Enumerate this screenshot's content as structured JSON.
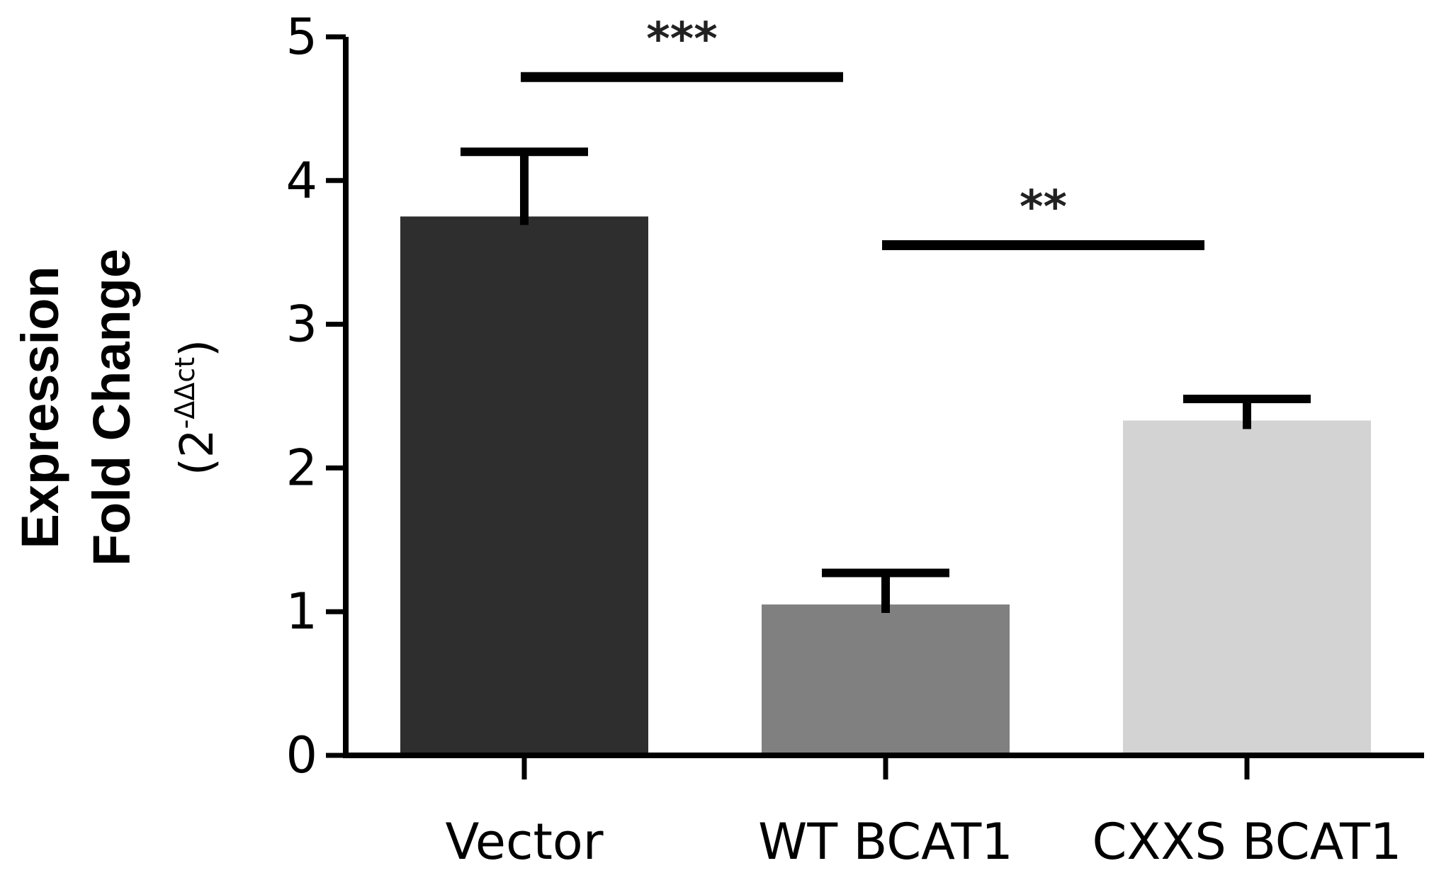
{
  "chart_data": {
    "type": "bar",
    "title": "",
    "xlabel": "",
    "ylabel": {
      "line1": "Expression",
      "line2": "Fold Change",
      "line3_prefix": "(2",
      "line3_superscript": "-ΔΔct",
      "line3_suffix": ")"
    },
    "categories": [
      "Vector",
      "WT BCAT1",
      "CXXS BCAT1"
    ],
    "values": [
      3.75,
      1.05,
      2.33
    ],
    "errors": [
      0.45,
      0.22,
      0.15
    ],
    "colors": [
      "#2e2e2e",
      "#808080",
      "#d3d3d3"
    ],
    "ylim": [
      0,
      5
    ],
    "yticks": [
      "0",
      "1",
      "2",
      "3",
      "4",
      "5"
    ],
    "grid": false,
    "significance": [
      {
        "from": 0,
        "to": 1,
        "label": "***",
        "y": 4.72
      },
      {
        "from": 1,
        "to": 2,
        "label": "**",
        "y": 3.55
      }
    ]
  }
}
